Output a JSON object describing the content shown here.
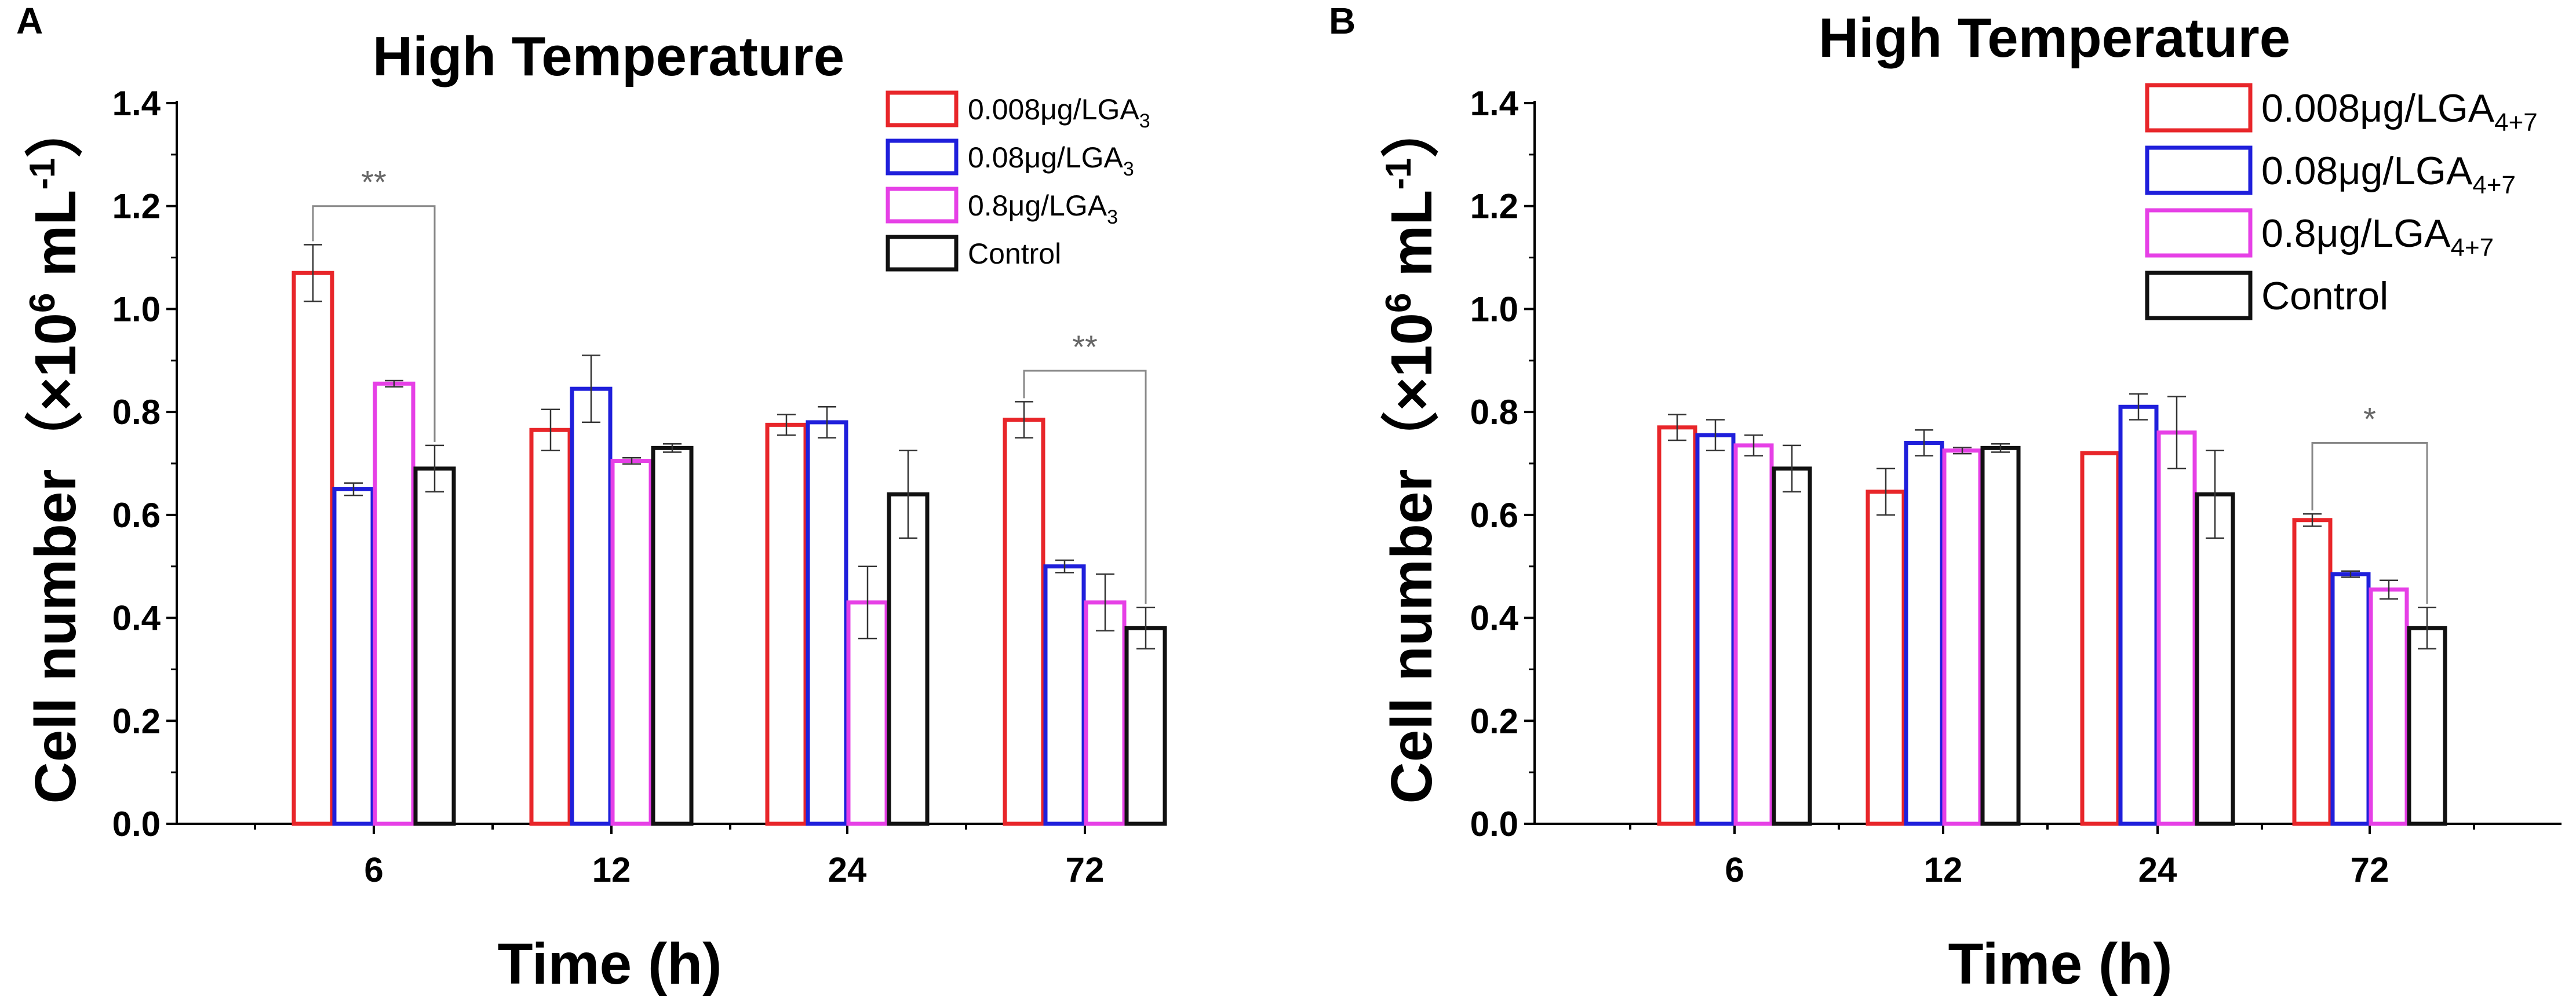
{
  "chart_data": [
    {
      "panel_label": "A",
      "type": "bar",
      "title": "High Temperature",
      "xlabel": "Time (h)",
      "ylabel_main": "Cell number（×10",
      "ylabel_sup1": "6",
      "ylabel_mid": " mL",
      "ylabel_sup2": "-1",
      "ylabel_end": "）",
      "ylim": [
        0,
        1.4
      ],
      "yticks": [
        "0.0",
        "0.2",
        "0.4",
        "0.6",
        "0.8",
        "1.0",
        "1.2",
        "1.4"
      ],
      "categories": [
        "6",
        "12",
        "24",
        "72"
      ],
      "series": [
        {
          "name": "0.008μg/LGA",
          "sub": "3",
          "color": "#e8262a",
          "values": [
            1.07,
            0.765,
            0.775,
            0.785
          ],
          "errors": [
            0.055,
            0.04,
            0.02,
            0.035
          ]
        },
        {
          "name": "0.08μg/LGA",
          "sub": "3",
          "color": "#1f1fdb",
          "values": [
            0.65,
            0.845,
            0.78,
            0.5
          ],
          "errors": [
            0.012,
            0.065,
            0.03,
            0.012
          ]
        },
        {
          "name": "0.8μg/LGA",
          "sub": "3",
          "color": "#e640e6",
          "values": [
            0.855,
            0.705,
            0.43,
            0.43
          ],
          "errors": [
            0.006,
            0.006,
            0.07,
            0.055
          ]
        },
        {
          "name": "Control",
          "sub": "",
          "color": "#111111",
          "values": [
            0.69,
            0.73,
            0.64,
            0.38
          ],
          "errors": [
            0.045,
            0.008,
            0.085,
            0.04
          ]
        }
      ],
      "annotations": [
        {
          "text": "**",
          "category_index": 0,
          "from_series": 0,
          "to_series": 3,
          "y": 1.2
        },
        {
          "text": "**",
          "category_index": 3,
          "from_series": 0,
          "to_series": 3,
          "y": 0.88
        }
      ],
      "legend_position": "top-right"
    },
    {
      "panel_label": "B",
      "type": "bar",
      "title": "High Temperature",
      "xlabel": "Time (h)",
      "ylabel_main": "Cell number（×10",
      "ylabel_sup1": "6",
      "ylabel_mid": " mL",
      "ylabel_sup2": "-1",
      "ylabel_end": "）",
      "ylim": [
        0,
        1.4
      ],
      "yticks": [
        "0.0",
        "0.2",
        "0.4",
        "0.6",
        "0.8",
        "1.0",
        "1.2",
        "1.4"
      ],
      "categories": [
        "6",
        "12",
        "24",
        "72"
      ],
      "series": [
        {
          "name": "0.008μg/LGA",
          "sub": "4+7",
          "color": "#e8262a",
          "values": [
            0.77,
            0.645,
            0.72,
            0.59
          ],
          "errors": [
            0.025,
            0.045,
            0.0,
            0.012
          ]
        },
        {
          "name": "0.08μg/LGA",
          "sub": "4+7",
          "color": "#1f1fdb",
          "values": [
            0.755,
            0.74,
            0.81,
            0.485
          ],
          "errors": [
            0.03,
            0.025,
            0.025,
            0.006
          ]
        },
        {
          "name": "0.8μg/LGA",
          "sub": "4+7",
          "color": "#e640e6",
          "values": [
            0.735,
            0.725,
            0.76,
            0.455
          ],
          "errors": [
            0.02,
            0.006,
            0.07,
            0.018
          ]
        },
        {
          "name": "Control",
          "sub": "",
          "color": "#111111",
          "values": [
            0.69,
            0.73,
            0.64,
            0.38
          ],
          "errors": [
            0.045,
            0.008,
            0.085,
            0.04
          ]
        }
      ],
      "annotations": [
        {
          "text": "*",
          "category_index": 3,
          "from_series": 0,
          "to_series": 3,
          "y": 0.74
        }
      ],
      "legend_position": "top-right"
    }
  ]
}
